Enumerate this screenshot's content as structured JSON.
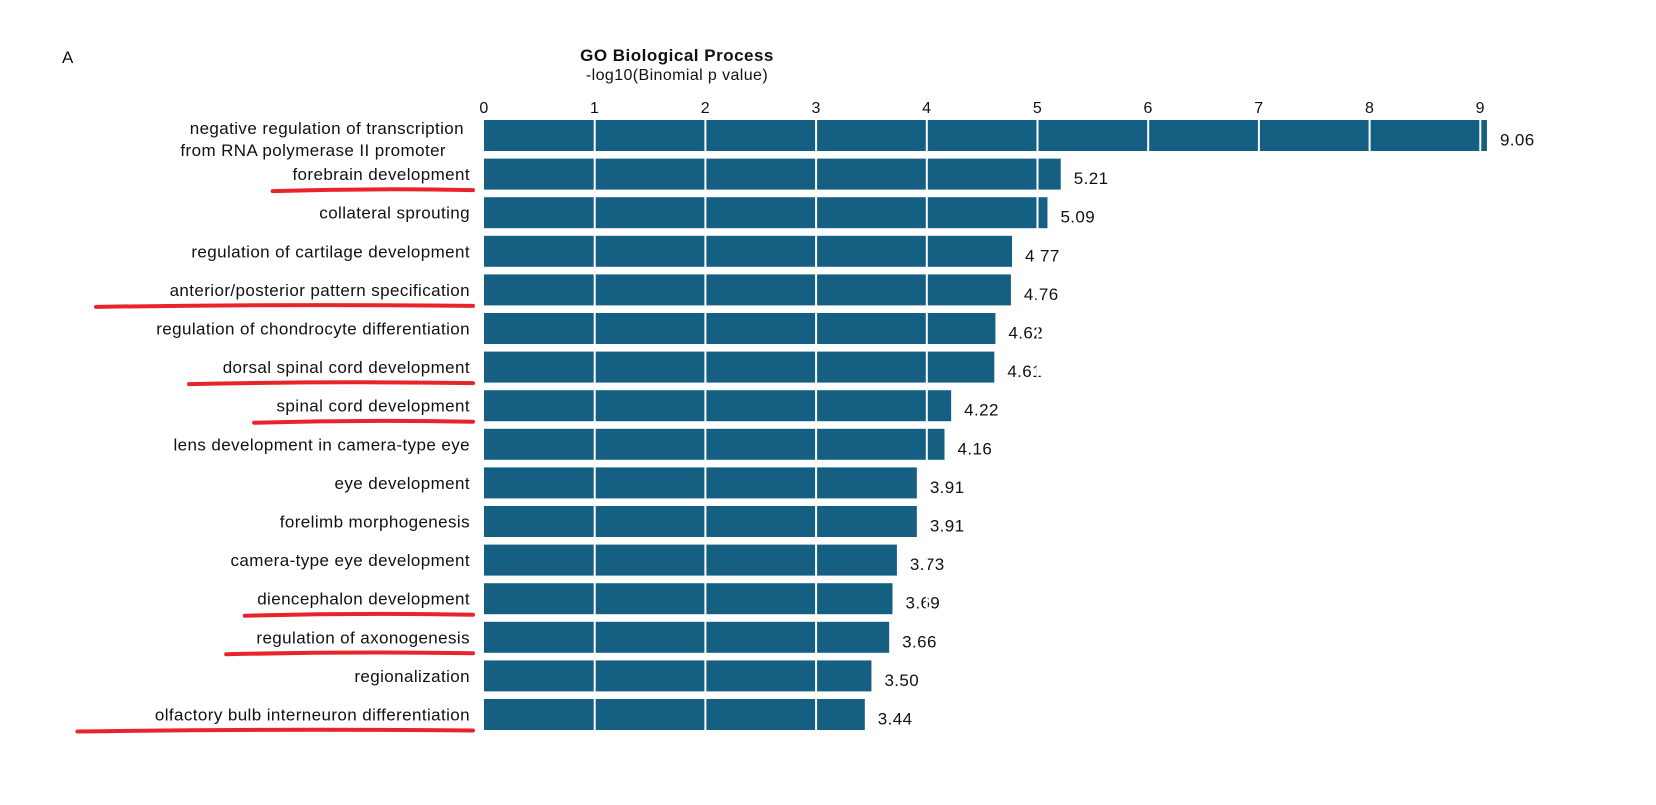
{
  "panel_label": "A",
  "chart_data": {
    "type": "bar",
    "orientation": "horizontal",
    "title": "GO Biological Process",
    "subtitle": "-log10(Binomial p value)",
    "xlim": [
      0,
      9.1
    ],
    "xticks": [
      0,
      1,
      2,
      3,
      4,
      5,
      6,
      7,
      8,
      9
    ],
    "grid": "vertical white lines over bars",
    "bar_color": "#156082",
    "highlight_color": "#e8232a",
    "categories": [
      [
        "negative regulation of transcription",
        "from RNA polymerase II promoter"
      ],
      [
        "forebrain development"
      ],
      [
        "collateral sprouting"
      ],
      [
        "regulation of cartilage development"
      ],
      [
        "anterior/posterior pattern specification"
      ],
      [
        "regulation of chondrocyte differentiation"
      ],
      [
        "dorsal spinal cord development"
      ],
      [
        "spinal cord development"
      ],
      [
        "lens development in camera-type eye"
      ],
      [
        "eye development"
      ],
      [
        "forelimb morphogenesis"
      ],
      [
        "camera-type eye development"
      ],
      [
        "diencephalon development"
      ],
      [
        "regulation of axonogenesis"
      ],
      [
        "regionalization"
      ],
      [
        "olfactory bulb interneuron differentiation"
      ]
    ],
    "values": [
      9.06,
      5.21,
      5.09,
      4.77,
      4.76,
      4.62,
      4.61,
      4.22,
      4.16,
      3.91,
      3.91,
      3.73,
      3.69,
      3.66,
      3.5,
      3.44
    ],
    "value_labels": [
      "9.06",
      "5.21",
      "5.09",
      "4.77",
      "4.76",
      "4.62",
      "4.61",
      "4.22",
      "4.16",
      "3.91",
      "3.91",
      "3.73",
      "3.69",
      "3.66",
      "3.50",
      "3.44"
    ],
    "underlined": [
      false,
      true,
      false,
      false,
      true,
      false,
      true,
      true,
      false,
      false,
      false,
      false,
      true,
      true,
      false,
      true
    ]
  }
}
